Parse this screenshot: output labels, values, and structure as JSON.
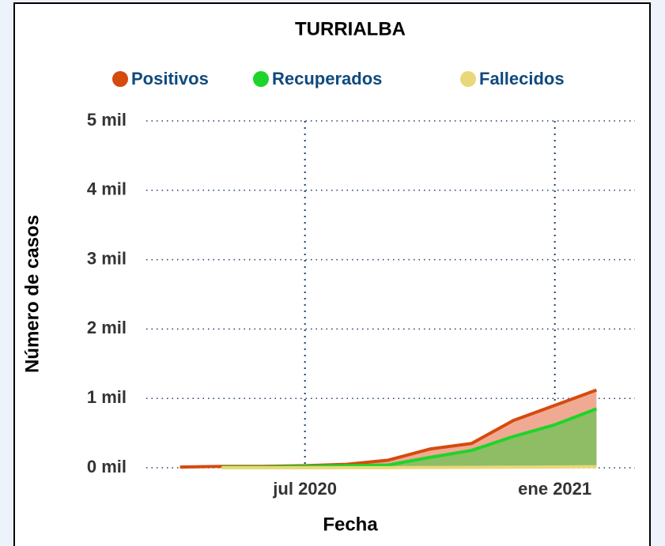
{
  "chart_data": {
    "type": "area",
    "title": "TURRIALBA",
    "x_label": "Fecha",
    "y_label": "Número de casos",
    "x": [
      "2020-04",
      "2020-05",
      "2020-06",
      "2020-07",
      "2020-08",
      "2020-09",
      "2020-10",
      "2020-11",
      "2020-12",
      "2021-01",
      "2021-02"
    ],
    "series": [
      {
        "name": "Positivos",
        "color": "#d64a0e",
        "fill": "#f0aa94",
        "values": [
          0.01,
          0.02,
          0.02,
          0.03,
          0.05,
          0.11,
          0.27,
          0.35,
          0.68,
          0.9,
          1.12
        ]
      },
      {
        "name": "Recuperados",
        "color": "#1ed42a",
        "fill": "#8fbd66",
        "values": [
          null,
          0.01,
          0.01,
          0.02,
          0.03,
          0.04,
          0.15,
          0.25,
          0.45,
          0.62,
          0.85
        ]
      },
      {
        "name": "Fallecidos",
        "color": "#e9d87a",
        "fill": "#e9d87a",
        "values": [
          null,
          0,
          0,
          0,
          0.001,
          0.002,
          0.004,
          0.006,
          0.009,
          0.012,
          0.015
        ]
      }
    ],
    "xlim": [
      "2020-03",
      "2021-03"
    ],
    "xticks": [
      {
        "value": "2020-07",
        "label": "jul 2020"
      },
      {
        "value": "2021-01",
        "label": "ene 2021"
      }
    ],
    "ylim": [
      0,
      5
    ],
    "yticks": [
      {
        "value": 0,
        "label": "0 mil"
      },
      {
        "value": 1,
        "label": "1 mil"
      },
      {
        "value": 2,
        "label": "2 mil"
      },
      {
        "value": 3,
        "label": "3 mil"
      },
      {
        "value": 4,
        "label": "4 mil"
      },
      {
        "value": 5,
        "label": "5 mil"
      }
    ],
    "grid": true,
    "legend": "top"
  }
}
